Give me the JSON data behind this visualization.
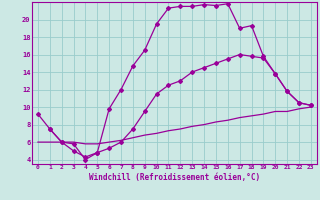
{
  "xlabel": "Windchill (Refroidissement éolien,°C)",
  "bg_color": "#cce8e4",
  "line_color": "#990099",
  "grid_color": "#99cccc",
  "xlim": [
    -0.5,
    23.5
  ],
  "ylim": [
    3.5,
    22.0
  ],
  "xticks": [
    0,
    1,
    2,
    3,
    4,
    5,
    6,
    7,
    8,
    9,
    10,
    11,
    12,
    13,
    14,
    15,
    16,
    17,
    18,
    19,
    20,
    21,
    22,
    23
  ],
  "yticks": [
    4,
    6,
    8,
    10,
    12,
    14,
    16,
    18,
    20
  ],
  "line1_x": [
    1,
    2,
    3,
    4,
    5,
    6,
    7,
    8,
    9,
    10,
    11,
    12,
    13,
    14,
    15,
    16,
    17,
    18,
    19,
    20,
    21,
    22,
    23
  ],
  "line1_y": [
    7.5,
    6.0,
    5.0,
    4.3,
    4.8,
    9.8,
    12.0,
    14.7,
    16.5,
    19.5,
    21.3,
    21.5,
    21.5,
    21.7,
    21.6,
    21.8,
    19.0,
    19.3,
    15.8,
    13.8,
    11.8,
    10.5,
    10.2
  ],
  "line2_x": [
    0,
    1,
    2,
    3,
    4,
    5,
    6,
    7,
    8,
    9,
    10,
    11,
    12,
    13,
    14,
    15,
    16,
    17,
    18,
    19,
    20,
    21,
    22,
    23
  ],
  "line2_y": [
    9.2,
    7.5,
    6.0,
    5.8,
    4.0,
    4.8,
    5.3,
    6.0,
    7.5,
    9.5,
    11.5,
    12.5,
    13.0,
    14.0,
    14.5,
    15.0,
    15.5,
    16.0,
    15.8,
    15.6,
    13.8,
    11.8,
    10.5,
    10.2
  ],
  "line3_x": [
    0,
    1,
    2,
    3,
    4,
    5,
    6,
    7,
    8,
    9,
    10,
    11,
    12,
    13,
    14,
    15,
    16,
    17,
    18,
    19,
    20,
    21,
    22,
    23
  ],
  "line3_y": [
    6.0,
    6.0,
    6.0,
    6.0,
    5.8,
    5.8,
    6.0,
    6.2,
    6.5,
    6.8,
    7.0,
    7.3,
    7.5,
    7.8,
    8.0,
    8.3,
    8.5,
    8.8,
    9.0,
    9.2,
    9.5,
    9.5,
    9.8,
    10.0
  ]
}
